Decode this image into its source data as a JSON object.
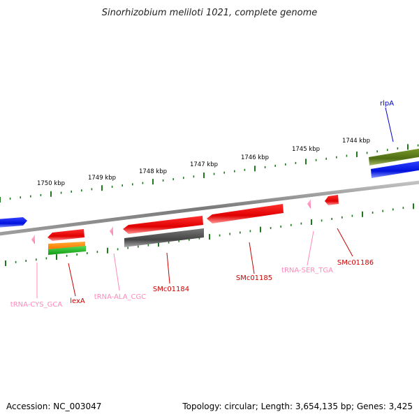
{
  "title": "Sinorhizobium meliloti 1021, complete genome",
  "footer": {
    "accession": "Accession: NC_003047",
    "topology": "Topology: circular; Length: 3,654,135 bp; Genes: 3,425"
  },
  "colors": {
    "backbone": "#808080",
    "tick": "#1f7a1f",
    "gene_red": "#ee1111",
    "gene_gray": "#555555",
    "gene_blue": "#1122ee",
    "gene_olive": "#5a7a1a",
    "gene_orange": "#ff8800",
    "gene_green": "#22bb22",
    "trna_pink": "#ff8ab8",
    "label_red": "#cc0000",
    "label_blue": "#0000cc",
    "label_pink": "#ff88bb"
  },
  "ruler": {
    "labels": [
      "1750 kbp",
      "1749 kbp",
      "1748 kbp",
      "1747 kbp",
      "1746 kbp",
      "1745 kbp",
      "1744 kbp"
    ]
  },
  "features": [
    {
      "name": "rlpA",
      "type": "gene",
      "color": "blue"
    },
    {
      "name": "lexA",
      "type": "gene",
      "color": "red"
    },
    {
      "name": "tRNA-CYS_GCA",
      "type": "tRNA",
      "color": "pink"
    },
    {
      "name": "tRNA-ALA_CGC",
      "type": "tRNA",
      "color": "pink"
    },
    {
      "name": "SMc01184",
      "type": "gene",
      "color": "red"
    },
    {
      "name": "SMc01185",
      "type": "gene",
      "color": "red"
    },
    {
      "name": "tRNA-SER_TGA",
      "type": "tRNA",
      "color": "pink"
    },
    {
      "name": "SMc01186",
      "type": "gene",
      "color": "red"
    }
  ]
}
